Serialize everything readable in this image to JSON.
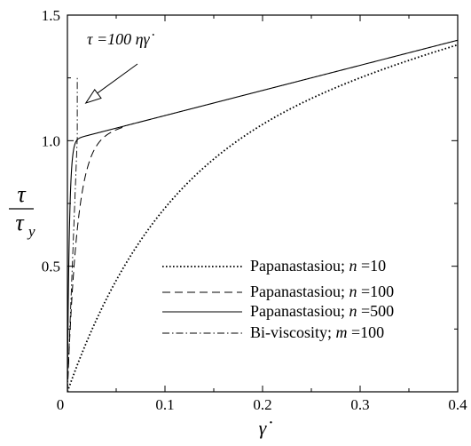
{
  "chart_data": {
    "type": "line",
    "title": "",
    "xlabel": "γ̇",
    "ylabel": {
      "numerator": "τ",
      "denominator": "τ",
      "denominator_subscript": "y"
    },
    "xlim": [
      0,
      0.4
    ],
    "ylim": [
      0,
      1.5
    ],
    "x_ticks": [
      0,
      0.1,
      0.2,
      0.3,
      0.4
    ],
    "x_tick_labels": [
      "0",
      "0.1",
      "0.2",
      "0.3",
      "0.4"
    ],
    "y_ticks": [
      0.5,
      1.0,
      1.5
    ],
    "y_tick_labels": [
      "0.5",
      "1.0",
      "1.5"
    ],
    "grid": false,
    "legend_position": "lower-right",
    "annotation": {
      "text": "τ =100 ηγ̇",
      "points_to": [
        0.018,
        1.15
      ]
    },
    "series": [
      {
        "name": "Papanastasiou; n =10",
        "label": "Papanastasiou; ",
        "param": "n",
        "value": "10",
        "style": "dotted",
        "model": "papanastasiou",
        "n": 10,
        "eta": 1,
        "tau_y": 1
      },
      {
        "name": "Papanastasiou; n =100",
        "label": "Papanastasiou; ",
        "param": "n",
        "value": "100",
        "style": "dashed",
        "model": "papanastasiou",
        "n": 100,
        "eta": 1,
        "tau_y": 1
      },
      {
        "name": "Papanastasiou; n =500",
        "label": "Papanastasiou; ",
        "param": "n",
        "value": "500",
        "style": "solid",
        "model": "papanastasiou",
        "n": 500,
        "eta": 1,
        "tau_y": 1
      },
      {
        "name": "Bi-viscosity; m =100",
        "label": "Bi-viscosity; ",
        "param": "m",
        "value": "100",
        "style": "dashdot",
        "model": "biviscosity",
        "m": 100,
        "eta": 1,
        "tau_y": 1
      }
    ]
  }
}
